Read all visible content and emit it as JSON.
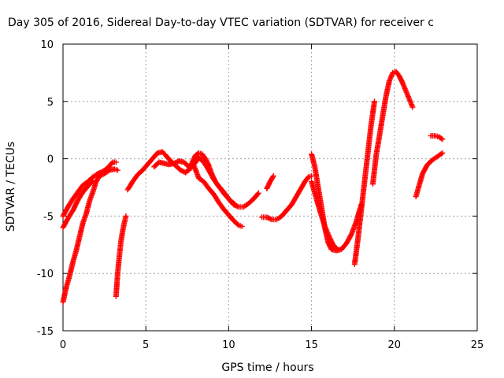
{
  "chart_data": {
    "type": "scatter",
    "title": "Day 305 of 2016, Sidereal Day-to-day VTEC variation (SDTVAR) for receiver c",
    "xlabel": "GPS time / hours",
    "ylabel": "SDTVAR / TECUs",
    "xlim": [
      0,
      25
    ],
    "ylim": [
      -15,
      10
    ],
    "xticks": [
      0,
      5,
      10,
      15,
      20,
      25
    ],
    "yticks": [
      -15,
      -10,
      -5,
      0,
      5,
      10
    ],
    "grid": true,
    "marker": "+",
    "color": "#ff0000",
    "series": [
      {
        "x": [
          0.0,
          0.3,
          0.6,
          0.9,
          1.2,
          1.5,
          1.8,
          2.1,
          2.4,
          2.7,
          3.0,
          3.2
        ],
        "y": [
          -5.0,
          -4.2,
          -3.5,
          -2.9,
          -2.3,
          -2.0,
          -1.6,
          -1.3,
          -1.1,
          -0.8,
          -0.3,
          -0.3
        ]
      },
      {
        "x": [
          0.0,
          0.3,
          0.6,
          0.9,
          1.2,
          1.5,
          1.8
        ],
        "y": [
          -6.0,
          -5.2,
          -4.5,
          -3.6,
          -2.9,
          -2.4,
          -1.9
        ]
      },
      {
        "x": [
          0.0,
          0.2,
          0.4,
          0.6,
          0.8,
          1.0,
          1.2,
          1.4,
          1.6,
          1.8,
          2.0,
          2.2,
          2.5,
          2.8,
          3.1,
          3.3
        ],
        "y": [
          -12.5,
          -11.2,
          -10.2,
          -9.0,
          -8.0,
          -6.8,
          -5.6,
          -4.8,
          -3.7,
          -2.9,
          -2.0,
          -1.5,
          -1.3,
          -1.0,
          -0.9,
          -1.0
        ]
      },
      {
        "x": [
          3.2,
          3.3,
          3.4,
          3.5,
          3.6,
          3.7,
          3.8
        ],
        "y": [
          -12.0,
          -10.0,
          -8.5,
          -7.2,
          -6.3,
          -5.6,
          -5.0
        ]
      },
      {
        "x": [
          3.9,
          4.2,
          4.5,
          4.8,
          5.1,
          5.4,
          5.7,
          6.0,
          6.2,
          6.5,
          6.8,
          7.1,
          7.4,
          7.7,
          8.0,
          8.2,
          8.5,
          8.8,
          9.1,
          9.4,
          9.7,
          10.0,
          10.3,
          10.6,
          10.9,
          11.2,
          11.5,
          11.8
        ],
        "y": [
          -2.7,
          -2.0,
          -1.4,
          -1.0,
          -0.5,
          0.0,
          0.5,
          0.6,
          0.3,
          -0.2,
          -0.6,
          -1.0,
          -1.2,
          -0.8,
          -0.3,
          0.1,
          -0.3,
          -1.0,
          -1.8,
          -2.4,
          -3.0,
          -3.5,
          -4.0,
          -4.2,
          -4.2,
          -3.9,
          -3.5,
          -3.0
        ]
      },
      {
        "x": [
          5.5,
          5.8,
          6.1,
          6.4,
          6.7,
          7.0,
          7.3,
          7.6,
          7.9,
          8.2,
          8.5,
          8.8,
          9.1,
          9.4,
          9.7,
          10.0,
          10.3,
          10.6,
          10.8
        ],
        "y": [
          -0.7,
          -0.3,
          -0.4,
          -0.5,
          -0.4,
          -0.2,
          -0.3,
          -0.7,
          -0.6,
          -1.7,
          -2.0,
          -2.6,
          -3.1,
          -3.8,
          -4.4,
          -4.9,
          -5.4,
          -5.8,
          -5.9
        ]
      },
      {
        "x": [
          7.6,
          7.8,
          8.0,
          8.2,
          8.4,
          8.6,
          8.8,
          9.0,
          9.2,
          9.4,
          9.7,
          10.0,
          10.4
        ],
        "y": [
          -1.0,
          -0.3,
          0.3,
          0.5,
          0.4,
          0.0,
          -0.6,
          -1.4,
          -2.0,
          -2.4,
          -2.9,
          -3.5,
          -4.0
        ]
      },
      {
        "x": [
          12.0,
          12.3,
          12.6,
          12.9,
          13.2,
          13.5,
          13.8,
          14.0,
          14.2,
          14.4,
          14.6,
          14.8,
          15.0
        ],
        "y": [
          -5.1,
          -5.1,
          -5.3,
          -5.3,
          -5.0,
          -4.5,
          -4.0,
          -3.5,
          -3.0,
          -2.5,
          -2.0,
          -1.6,
          -1.5
        ]
      },
      {
        "x": [
          12.3,
          12.5,
          12.7
        ],
        "y": [
          -2.6,
          -2.0,
          -1.5
        ]
      },
      {
        "x": [
          15.0,
          15.2,
          15.4,
          15.6,
          15.8,
          16.0,
          16.2,
          16.5,
          16.8,
          17.1,
          17.4,
          17.7,
          18.0
        ],
        "y": [
          0.4,
          -0.7,
          -2.5,
          -4.2,
          -6.0,
          -7.3,
          -7.9,
          -8.0,
          -7.9,
          -7.4,
          -6.6,
          -5.5,
          -4.0
        ]
      },
      {
        "x": [
          15.0,
          15.2,
          15.5,
          15.8,
          16.1,
          16.3,
          16.5
        ],
        "y": [
          -2.0,
          -3.0,
          -4.5,
          -5.9,
          -6.9,
          -7.5,
          -7.8
        ]
      },
      {
        "x": [
          17.6,
          17.8,
          18.0,
          18.2,
          18.4,
          18.6,
          18.8
        ],
        "y": [
          -9.2,
          -7.0,
          -4.5,
          -2.0,
          0.5,
          3.0,
          5.0
        ]
      },
      {
        "x": [
          18.7,
          18.9,
          19.1,
          19.3,
          19.5,
          19.7,
          19.9,
          20.1,
          20.3,
          20.5,
          20.7,
          20.9,
          21.1
        ],
        "y": [
          -2.2,
          0.3,
          2.0,
          3.8,
          5.5,
          6.8,
          7.5,
          7.6,
          7.2,
          6.6,
          5.9,
          5.2,
          4.5
        ]
      },
      {
        "x": [
          21.3,
          21.5,
          21.7,
          22.0,
          22.3,
          22.6,
          22.9
        ],
        "y": [
          -3.3,
          -2.3,
          -1.3,
          -0.5,
          -0.1,
          0.2,
          0.5
        ]
      },
      {
        "x": [
          22.2,
          22.5,
          22.7,
          22.9
        ],
        "y": [
          2.0,
          2.0,
          1.9,
          1.7
        ]
      }
    ]
  }
}
